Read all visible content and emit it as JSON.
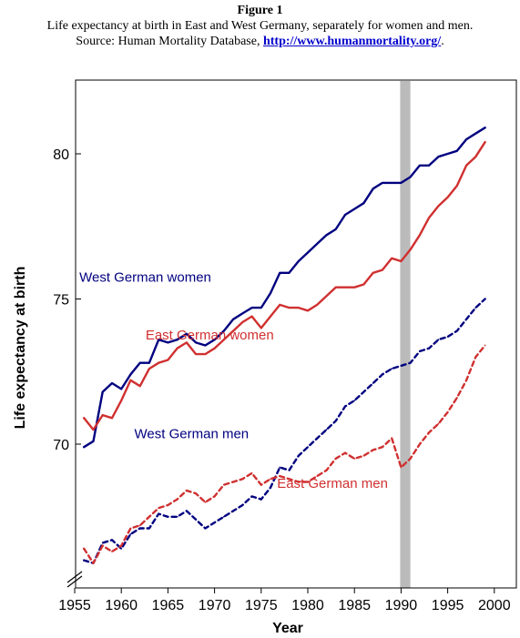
{
  "caption": {
    "figure_label": "Figure 1",
    "line1": "Life expectancy at birth in East and West Germany, separately for women and men.",
    "line2_prefix": "Source: Human Mortality Database, ",
    "link_text": "http://www.humanmortality.org/",
    "line2_suffix": "."
  },
  "chart_data": {
    "type": "line",
    "xlabel": "Year",
    "ylabel": "Life expectancy at birth",
    "xlim": [
      1955,
      2000
    ],
    "ylim": [
      65,
      82
    ],
    "x_ticks": [
      1955,
      1960,
      1965,
      1970,
      1975,
      1980,
      1985,
      1990,
      1995,
      2000
    ],
    "y_ticks": [
      70,
      75,
      80
    ],
    "highlight_band": [
      1990,
      1991
    ],
    "highlight_color": "#bbbbbb",
    "axis_break": true,
    "series": [
      {
        "name": "West German women",
        "color": "#000080",
        "dash": "solid",
        "x": [
          1956,
          1957,
          1958,
          1959,
          1960,
          1961,
          1962,
          1963,
          1964,
          1965,
          1966,
          1967,
          1968,
          1969,
          1970,
          1971,
          1972,
          1973,
          1974,
          1975,
          1976,
          1977,
          1978,
          1979,
          1980,
          1981,
          1982,
          1983,
          1984,
          1985,
          1986,
          1987,
          1988,
          1989,
          1990,
          1991,
          1992,
          1993,
          1994,
          1995,
          1996,
          1997,
          1998,
          1999
        ],
        "values": [
          69.9,
          70.1,
          71.8,
          72.1,
          71.9,
          72.4,
          72.8,
          72.8,
          73.6,
          73.5,
          73.6,
          73.8,
          73.5,
          73.4,
          73.6,
          73.9,
          74.3,
          74.5,
          74.7,
          74.7,
          75.2,
          75.9,
          75.9,
          76.3,
          76.6,
          76.9,
          77.2,
          77.4,
          77.9,
          78.1,
          78.3,
          78.8,
          79.0,
          79.0,
          79.0,
          79.2,
          79.6,
          79.6,
          79.9,
          80.0,
          80.1,
          80.5,
          80.7,
          80.9
        ]
      },
      {
        "name": "East German women",
        "color": "#d03030",
        "dash": "solid",
        "x": [
          1956,
          1957,
          1958,
          1959,
          1960,
          1961,
          1962,
          1963,
          1964,
          1965,
          1966,
          1967,
          1968,
          1969,
          1970,
          1971,
          1972,
          1973,
          1974,
          1975,
          1976,
          1977,
          1978,
          1979,
          1980,
          1981,
          1982,
          1983,
          1984,
          1985,
          1986,
          1987,
          1988,
          1989,
          1990,
          1991,
          1992,
          1993,
          1994,
          1995,
          1996,
          1997,
          1998,
          1999
        ],
        "values": [
          70.9,
          70.5,
          71.0,
          70.9,
          71.5,
          72.2,
          72.0,
          72.6,
          72.8,
          72.9,
          73.3,
          73.5,
          73.1,
          73.1,
          73.3,
          73.6,
          73.9,
          74.2,
          74.4,
          74.0,
          74.4,
          74.8,
          74.7,
          74.7,
          74.6,
          74.8,
          75.1,
          75.4,
          75.4,
          75.4,
          75.5,
          75.9,
          76.0,
          76.4,
          76.3,
          76.7,
          77.2,
          77.8,
          78.2,
          78.5,
          78.9,
          79.6,
          79.9,
          80.4
        ]
      },
      {
        "name": "West German men",
        "color": "#000080",
        "dash": "dashed",
        "x": [
          1956,
          1957,
          1958,
          1959,
          1960,
          1961,
          1962,
          1963,
          1964,
          1965,
          1966,
          1967,
          1968,
          1969,
          1970,
          1971,
          1972,
          1973,
          1974,
          1975,
          1976,
          1977,
          1978,
          1979,
          1980,
          1981,
          1982,
          1983,
          1984,
          1985,
          1986,
          1987,
          1988,
          1989,
          1990,
          1991,
          1992,
          1993,
          1994,
          1995,
          1996,
          1997,
          1998,
          1999
        ],
        "values": [
          66.0,
          65.9,
          66.6,
          66.7,
          66.4,
          66.9,
          67.1,
          67.1,
          67.6,
          67.5,
          67.5,
          67.7,
          67.4,
          67.1,
          67.3,
          67.5,
          67.7,
          67.9,
          68.2,
          68.1,
          68.5,
          69.2,
          69.1,
          69.6,
          69.9,
          70.2,
          70.5,
          70.8,
          71.3,
          71.5,
          71.8,
          72.1,
          72.4,
          72.6,
          72.7,
          72.8,
          73.2,
          73.3,
          73.6,
          73.7,
          73.9,
          74.3,
          74.7,
          75.0
        ]
      },
      {
        "name": "East German men",
        "color": "#d03030",
        "dash": "dashed",
        "x": [
          1956,
          1957,
          1958,
          1959,
          1960,
          1961,
          1962,
          1963,
          1964,
          1965,
          1966,
          1967,
          1968,
          1969,
          1970,
          1971,
          1972,
          1973,
          1974,
          1975,
          1976,
          1977,
          1978,
          1979,
          1980,
          1981,
          1982,
          1983,
          1984,
          1985,
          1986,
          1987,
          1988,
          1989,
          1990,
          1991,
          1992,
          1993,
          1994,
          1995,
          1996,
          1997,
          1998,
          1999
        ],
        "values": [
          66.4,
          65.9,
          66.5,
          66.3,
          66.5,
          67.1,
          67.2,
          67.5,
          67.8,
          67.9,
          68.1,
          68.4,
          68.3,
          68.0,
          68.2,
          68.6,
          68.7,
          68.8,
          69.0,
          68.6,
          68.8,
          68.9,
          68.8,
          68.7,
          68.7,
          68.9,
          69.1,
          69.5,
          69.7,
          69.5,
          69.6,
          69.8,
          69.9,
          70.2,
          69.2,
          69.5,
          70.0,
          70.4,
          70.7,
          71.1,
          71.6,
          72.2,
          73.0,
          73.4
        ]
      }
    ],
    "series_labels": [
      {
        "series": 0,
        "text": "West German women",
        "x": 1955.5,
        "y": 75.6
      },
      {
        "series": 1,
        "text": "East German women",
        "x": 1962.6,
        "y": 73.6
      },
      {
        "series": 2,
        "text": "West German men",
        "x": 1961.4,
        "y": 70.2
      },
      {
        "series": 3,
        "text": "East German men",
        "x": 1976.7,
        "y": 68.5
      }
    ]
  }
}
